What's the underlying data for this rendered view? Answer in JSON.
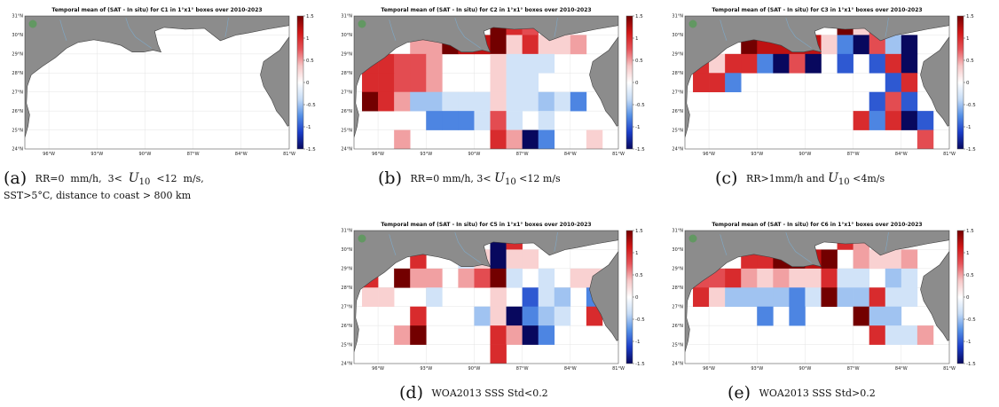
{
  "colors": {
    "land": "#8c8c8c",
    "coast": "#404040",
    "river": "#7fa9c8",
    "scale": [
      "#08085e",
      "#1a3dc8",
      "#5590e6",
      "#c6dcf6",
      "#ffffff",
      "#f7c6c6",
      "#e6545a",
      "#d11616",
      "#730000"
    ]
  },
  "shared_axes": {
    "x_ticks": [
      "96°W",
      "93°W",
      "90°W",
      "87°W",
      "84°W",
      "81°W"
    ],
    "y_ticks": [
      "24°N",
      "25°N",
      "26°N",
      "27°N",
      "28°N",
      "29°N",
      "30°N",
      "31°N"
    ],
    "colorbar_ticks": [
      "1.5",
      "1",
      "0.5",
      "0",
      "-0.5",
      "-1",
      "-1.5"
    ],
    "colorbar_range": [
      -1.5,
      1.5
    ]
  },
  "chart_data": [
    {
      "id": "a",
      "type": "heatmap",
      "title": "Temporal mean of (SAT - In situ) for C1 in 1°x1° boxes over 2010-2023",
      "caption_label": "(a)",
      "caption_lines": [
        "RR=0 mm/h, 3< U10 <12 m/s,",
        "SST>5°C, distance to coast > 800 km"
      ],
      "cells": []
    },
    {
      "id": "b",
      "type": "heatmap",
      "title": "Temporal mean of (SAT - In situ) for C2 in 1°x1° boxes over 2010-2023",
      "caption_label": "(b)",
      "caption_lines": [
        "RR=0 mm/h, 3< U10 <12 m/s"
      ],
      "cells": [
        {
          "lon": -88.5,
          "lat": 30.5,
          "value": 1.5
        },
        {
          "lon": -87.5,
          "lat": 30.5,
          "value": 1.0
        },
        {
          "lon": -86.5,
          "lat": 30.5,
          "value": 0.8
        },
        {
          "lon": -93.5,
          "lat": 29.5,
          "value": 0.5
        },
        {
          "lon": -92.5,
          "lat": 29.5,
          "value": 0.5
        },
        {
          "lon": -91.5,
          "lat": 29.5,
          "value": 1.5
        },
        {
          "lon": -90.5,
          "lat": 29.5,
          "value": 1.2
        },
        {
          "lon": -89.5,
          "lat": 29.5,
          "value": 1.2
        },
        {
          "lon": -88.5,
          "lat": 29.5,
          "value": 1.5
        },
        {
          "lon": -87.5,
          "lat": 29.5,
          "value": 0.3
        },
        {
          "lon": -86.5,
          "lat": 29.5,
          "value": 1.0
        },
        {
          "lon": -85.5,
          "lat": 29.5,
          "value": 0.3
        },
        {
          "lon": -84.5,
          "lat": 29.5,
          "value": 0.3
        },
        {
          "lon": -83.5,
          "lat": 29.5,
          "value": 0.5
        },
        {
          "lon": -96.5,
          "lat": 28.5,
          "value": 1.0
        },
        {
          "lon": -95.5,
          "lat": 28.5,
          "value": 1.0
        },
        {
          "lon": -94.5,
          "lat": 28.5,
          "value": 0.8
        },
        {
          "lon": -93.5,
          "lat": 28.5,
          "value": 0.8
        },
        {
          "lon": -92.5,
          "lat": 28.5,
          "value": 0.5
        },
        {
          "lon": -88.5,
          "lat": 28.5,
          "value": 0.3
        },
        {
          "lon": -87.5,
          "lat": 28.5,
          "value": -0.3
        },
        {
          "lon": -86.5,
          "lat": 28.5,
          "value": -0.3
        },
        {
          "lon": -85.5,
          "lat": 28.5,
          "value": -0.3
        },
        {
          "lon": -96.5,
          "lat": 27.5,
          "value": 1.0
        },
        {
          "lon": -95.5,
          "lat": 27.5,
          "value": 1.0
        },
        {
          "lon": -94.5,
          "lat": 27.5,
          "value": 0.8
        },
        {
          "lon": -93.5,
          "lat": 27.5,
          "value": 0.8
        },
        {
          "lon": -92.5,
          "lat": 27.5,
          "value": 0.5
        },
        {
          "lon": -88.5,
          "lat": 27.5,
          "value": 0.3
        },
        {
          "lon": -87.5,
          "lat": 27.5,
          "value": -0.3
        },
        {
          "lon": -86.5,
          "lat": 27.5,
          "value": -0.3
        },
        {
          "lon": -96.5,
          "lat": 26.5,
          "value": 1.5
        },
        {
          "lon": -95.5,
          "lat": 26.5,
          "value": 1.0
        },
        {
          "lon": -94.5,
          "lat": 26.5,
          "value": 0.5
        },
        {
          "lon": -93.5,
          "lat": 26.5,
          "value": -0.5
        },
        {
          "lon": -92.5,
          "lat": 26.5,
          "value": -0.5
        },
        {
          "lon": -91.5,
          "lat": 26.5,
          "value": -0.3
        },
        {
          "lon": -90.5,
          "lat": 26.5,
          "value": -0.3
        },
        {
          "lon": -89.5,
          "lat": 26.5,
          "value": -0.3
        },
        {
          "lon": -88.5,
          "lat": 26.5,
          "value": 0.3
        },
        {
          "lon": -87.5,
          "lat": 26.5,
          "value": -0.3
        },
        {
          "lon": -86.5,
          "lat": 26.5,
          "value": -0.3
        },
        {
          "lon": -85.5,
          "lat": 26.5,
          "value": -0.5
        },
        {
          "lon": -84.5,
          "lat": 26.5,
          "value": -0.3
        },
        {
          "lon": -83.5,
          "lat": 26.5,
          "value": -0.8
        },
        {
          "lon": -92.5,
          "lat": 25.5,
          "value": -0.8
        },
        {
          "lon": -91.5,
          "lat": 25.5,
          "value": -0.8
        },
        {
          "lon": -90.5,
          "lat": 25.5,
          "value": -0.8
        },
        {
          "lon": -89.5,
          "lat": 25.5,
          "value": -0.3
        },
        {
          "lon": -88.5,
          "lat": 25.5,
          "value": 0.8
        },
        {
          "lon": -87.5,
          "lat": 25.5,
          "value": -0.3
        },
        {
          "lon": -85.5,
          "lat": 25.5,
          "value": -0.3
        },
        {
          "lon": -94.5,
          "lat": 24.5,
          "value": 0.5
        },
        {
          "lon": -88.5,
          "lat": 24.5,
          "value": 1.0
        },
        {
          "lon": -87.5,
          "lat": 24.5,
          "value": 0.5
        },
        {
          "lon": -86.5,
          "lat": 24.5,
          "value": -1.5
        },
        {
          "lon": -85.5,
          "lat": 24.5,
          "value": -0.8
        },
        {
          "lon": -82.5,
          "lat": 24.5,
          "value": 0.3
        }
      ]
    },
    {
      "id": "c",
      "type": "heatmap",
      "title": "Temporal mean of (SAT - In situ) for C3 in 1°x1° boxes over 2010-2023",
      "caption_label": "(c)",
      "caption_lines": [
        "RR>1mm/h and U10 <4m/s"
      ],
      "cells": [
        {
          "lon": -87.5,
          "lat": 30.5,
          "value": 1.5
        },
        {
          "lon": -86.5,
          "lat": 30.5,
          "value": 0.3
        },
        {
          "lon": -85.5,
          "lat": 30.5,
          "value": 0.8
        },
        {
          "lon": -93.5,
          "lat": 29.5,
          "value": 1.5
        },
        {
          "lon": -92.5,
          "lat": 29.5,
          "value": 1.2
        },
        {
          "lon": -91.5,
          "lat": 29.5,
          "value": 1.2
        },
        {
          "lon": -90.5,
          "lat": 29.5,
          "value": 1.2
        },
        {
          "lon": -89.5,
          "lat": 29.5,
          "value": 1.2
        },
        {
          "lon": -88.5,
          "lat": 29.5,
          "value": 0.3
        },
        {
          "lon": -87.5,
          "lat": 29.5,
          "value": -0.8
        },
        {
          "lon": -86.5,
          "lat": 29.5,
          "value": -1.5
        },
        {
          "lon": -85.5,
          "lat": 29.5,
          "value": 0.8
        },
        {
          "lon": -84.5,
          "lat": 29.5,
          "value": -0.5
        },
        {
          "lon": -83.5,
          "lat": 29.5,
          "value": -1.5
        },
        {
          "lon": -96.5,
          "lat": 28.5,
          "value": 1.0
        },
        {
          "lon": -95.5,
          "lat": 28.5,
          "value": 0.3
        },
        {
          "lon": -94.5,
          "lat": 28.5,
          "value": 1.0
        },
        {
          "lon": -93.5,
          "lat": 28.5,
          "value": 1.0
        },
        {
          "lon": -92.5,
          "lat": 28.5,
          "value": -0.8
        },
        {
          "lon": -91.5,
          "lat": 28.5,
          "value": -1.5
        },
        {
          "lon": -90.5,
          "lat": 28.5,
          "value": 0.8
        },
        {
          "lon": -89.5,
          "lat": 28.5,
          "value": -1.5
        },
        {
          "lon": -87.5,
          "lat": 28.5,
          "value": -1.0
        },
        {
          "lon": -85.5,
          "lat": 28.5,
          "value": -1.0
        },
        {
          "lon": -84.5,
          "lat": 28.5,
          "value": 1.0
        },
        {
          "lon": -83.5,
          "lat": 28.5,
          "value": -1.5
        },
        {
          "lon": -96.5,
          "lat": 27.5,
          "value": 1.0
        },
        {
          "lon": -95.5,
          "lat": 27.5,
          "value": 1.0
        },
        {
          "lon": -94.5,
          "lat": 27.5,
          "value": -0.8
        },
        {
          "lon": -84.5,
          "lat": 27.5,
          "value": -1.0
        },
        {
          "lon": -83.5,
          "lat": 27.5,
          "value": 1.0
        },
        {
          "lon": -85.5,
          "lat": 26.5,
          "value": -1.0
        },
        {
          "lon": -84.5,
          "lat": 26.5,
          "value": 0.8
        },
        {
          "lon": -83.5,
          "lat": 26.5,
          "value": -1.0
        },
        {
          "lon": -86.5,
          "lat": 25.5,
          "value": 1.0
        },
        {
          "lon": -85.5,
          "lat": 25.5,
          "value": -0.8
        },
        {
          "lon": -84.5,
          "lat": 25.5,
          "value": 1.0
        },
        {
          "lon": -83.5,
          "lat": 25.5,
          "value": -1.5
        },
        {
          "lon": -82.5,
          "lat": 25.5,
          "value": -1.0
        },
        {
          "lon": -82.5,
          "lat": 24.5,
          "value": 0.8
        }
      ]
    },
    {
      "id": "d",
      "type": "heatmap",
      "title": "Temporal mean of (SAT - In situ) for C5 in 1°x1° boxes over 2010-2023",
      "caption_label": "(d)",
      "caption_lines": [
        "WOA2013 SSS Std<0.2"
      ],
      "cells": [
        {
          "lon": -88.5,
          "lat": 30.5,
          "value": -1.5
        },
        {
          "lon": -87.5,
          "lat": 30.5,
          "value": 1.0
        },
        {
          "lon": -93.5,
          "lat": 29.5,
          "value": 1.0
        },
        {
          "lon": -90.5,
          "lat": 29.5,
          "value": -0.3
        },
        {
          "lon": -89.5,
          "lat": 29.5,
          "value": 0.3
        },
        {
          "lon": -88.5,
          "lat": 29.5,
          "value": -1.5
        },
        {
          "lon": -87.5,
          "lat": 29.5,
          "value": 0.3
        },
        {
          "lon": -86.5,
          "lat": 29.5,
          "value": 0.3
        },
        {
          "lon": -96.5,
          "lat": 28.5,
          "value": 1.0
        },
        {
          "lon": -94.5,
          "lat": 28.5,
          "value": 1.5
        },
        {
          "lon": -93.5,
          "lat": 28.5,
          "value": 0.5
        },
        {
          "lon": -92.5,
          "lat": 28.5,
          "value": 0.5
        },
        {
          "lon": -90.5,
          "lat": 28.5,
          "value": 0.5
        },
        {
          "lon": -89.5,
          "lat": 28.5,
          "value": 0.8
        },
        {
          "lon": -88.5,
          "lat": 28.5,
          "value": 1.5
        },
        {
          "lon": -87.5,
          "lat": 28.5,
          "value": -0.3
        },
        {
          "lon": -85.5,
          "lat": 28.5,
          "value": -0.3
        },
        {
          "lon": -83.5,
          "lat": 28.5,
          "value": 0.3
        },
        {
          "lon": -82.5,
          "lat": 28.5,
          "value": 0.3
        },
        {
          "lon": -96.5,
          "lat": 27.5,
          "value": 0.3
        },
        {
          "lon": -95.5,
          "lat": 27.5,
          "value": 0.3
        },
        {
          "lon": -92.5,
          "lat": 27.5,
          "value": -0.3
        },
        {
          "lon": -88.5,
          "lat": 27.5,
          "value": 0.3
        },
        {
          "lon": -86.5,
          "lat": 27.5,
          "value": -1.0
        },
        {
          "lon": -85.5,
          "lat": 27.5,
          "value": -0.3
        },
        {
          "lon": -84.5,
          "lat": 27.5,
          "value": -0.5
        },
        {
          "lon": -82.5,
          "lat": 27.5,
          "value": -0.8
        },
        {
          "lon": -93.5,
          "lat": 26.5,
          "value": 1.0
        },
        {
          "lon": -89.5,
          "lat": 26.5,
          "value": -0.5
        },
        {
          "lon": -88.5,
          "lat": 26.5,
          "value": 0.3
        },
        {
          "lon": -87.5,
          "lat": 26.5,
          "value": -1.5
        },
        {
          "lon": -86.5,
          "lat": 26.5,
          "value": -0.8
        },
        {
          "lon": -85.5,
          "lat": 26.5,
          "value": -0.5
        },
        {
          "lon": -84.5,
          "lat": 26.5,
          "value": -0.3
        },
        {
          "lon": -82.5,
          "lat": 26.5,
          "value": 1.0
        },
        {
          "lon": -94.5,
          "lat": 25.5,
          "value": 0.5
        },
        {
          "lon": -93.5,
          "lat": 25.5,
          "value": 1.5
        },
        {
          "lon": -88.5,
          "lat": 25.5,
          "value": 1.0
        },
        {
          "lon": -87.5,
          "lat": 25.5,
          "value": 0.5
        },
        {
          "lon": -86.5,
          "lat": 25.5,
          "value": -1.5
        },
        {
          "lon": -85.5,
          "lat": 25.5,
          "value": -0.8
        },
        {
          "lon": -88.5,
          "lat": 24.5,
          "value": 1.0
        }
      ]
    },
    {
      "id": "e",
      "type": "heatmap",
      "title": "Temporal mean of (SAT - In situ) for C6 in 1°x1° boxes over 2010-2023",
      "caption_label": "(e)",
      "caption_lines": [
        "WOA2013 SSS Std>0.2"
      ],
      "cells": [
        {
          "lon": -87.5,
          "lat": 30.5,
          "value": 1.0
        },
        {
          "lon": -86.5,
          "lat": 30.5,
          "value": 0.5
        },
        {
          "lon": -93.5,
          "lat": 29.5,
          "value": 1.0
        },
        {
          "lon": -92.5,
          "lat": 29.5,
          "value": 1.0
        },
        {
          "lon": -91.5,
          "lat": 29.5,
          "value": 1.5
        },
        {
          "lon": -90.5,
          "lat": 29.5,
          "value": 1.5
        },
        {
          "lon": -89.5,
          "lat": 29.5,
          "value": 1.2
        },
        {
          "lon": -88.5,
          "lat": 29.5,
          "value": 1.5
        },
        {
          "lon": -86.5,
          "lat": 29.5,
          "value": 0.5
        },
        {
          "lon": -85.5,
          "lat": 29.5,
          "value": 0.3
        },
        {
          "lon": -84.5,
          "lat": 29.5,
          "value": 0.3
        },
        {
          "lon": -83.5,
          "lat": 29.5,
          "value": 0.5
        },
        {
          "lon": -96.5,
          "lat": 28.5,
          "value": 0.8
        },
        {
          "lon": -95.5,
          "lat": 28.5,
          "value": 0.8
        },
        {
          "lon": -94.5,
          "lat": 28.5,
          "value": 1.0
        },
        {
          "lon": -93.5,
          "lat": 28.5,
          "value": 0.5
        },
        {
          "lon": -92.5,
          "lat": 28.5,
          "value": 0.3
        },
        {
          "lon": -91.5,
          "lat": 28.5,
          "value": 0.5
        },
        {
          "lon": -90.5,
          "lat": 28.5,
          "value": 0.3
        },
        {
          "lon": -89.5,
          "lat": 28.5,
          "value": 0.3
        },
        {
          "lon": -88.5,
          "lat": 28.5,
          "value": 1.0
        },
        {
          "lon": -87.5,
          "lat": 28.5,
          "value": -0.3
        },
        {
          "lon": -86.5,
          "lat": 28.5,
          "value": -0.3
        },
        {
          "lon": -84.5,
          "lat": 28.5,
          "value": -0.5
        },
        {
          "lon": -83.5,
          "lat": 28.5,
          "value": -0.3
        },
        {
          "lon": -96.5,
          "lat": 27.5,
          "value": 1.0
        },
        {
          "lon": -95.5,
          "lat": 27.5,
          "value": 0.3
        },
        {
          "lon": -94.5,
          "lat": 27.5,
          "value": -0.5
        },
        {
          "lon": -93.5,
          "lat": 27.5,
          "value": -0.5
        },
        {
          "lon": -92.5,
          "lat": 27.5,
          "value": -0.5
        },
        {
          "lon": -91.5,
          "lat": 27.5,
          "value": -0.5
        },
        {
          "lon": -90.5,
          "lat": 27.5,
          "value": -0.8
        },
        {
          "lon": -89.5,
          "lat": 27.5,
          "value": -0.3
        },
        {
          "lon": -88.5,
          "lat": 27.5,
          "value": 1.5
        },
        {
          "lon": -87.5,
          "lat": 27.5,
          "value": -0.5
        },
        {
          "lon": -86.5,
          "lat": 27.5,
          "value": -0.5
        },
        {
          "lon": -85.5,
          "lat": 27.5,
          "value": 1.0
        },
        {
          "lon": -84.5,
          "lat": 27.5,
          "value": -0.3
        },
        {
          "lon": -83.5,
          "lat": 27.5,
          "value": -0.3
        },
        {
          "lon": -92.5,
          "lat": 26.5,
          "value": -0.8
        },
        {
          "lon": -90.5,
          "lat": 26.5,
          "value": -0.8
        },
        {
          "lon": -86.5,
          "lat": 26.5,
          "value": 1.5
        },
        {
          "lon": -85.5,
          "lat": 26.5,
          "value": -0.5
        },
        {
          "lon": -84.5,
          "lat": 26.5,
          "value": -0.5
        },
        {
          "lon": -85.5,
          "lat": 25.5,
          "value": 1.0
        },
        {
          "lon": -84.5,
          "lat": 25.5,
          "value": -0.3
        },
        {
          "lon": -83.5,
          "lat": 25.5,
          "value": -0.3
        },
        {
          "lon": -82.5,
          "lat": 25.5,
          "value": 0.5
        }
      ]
    }
  ]
}
